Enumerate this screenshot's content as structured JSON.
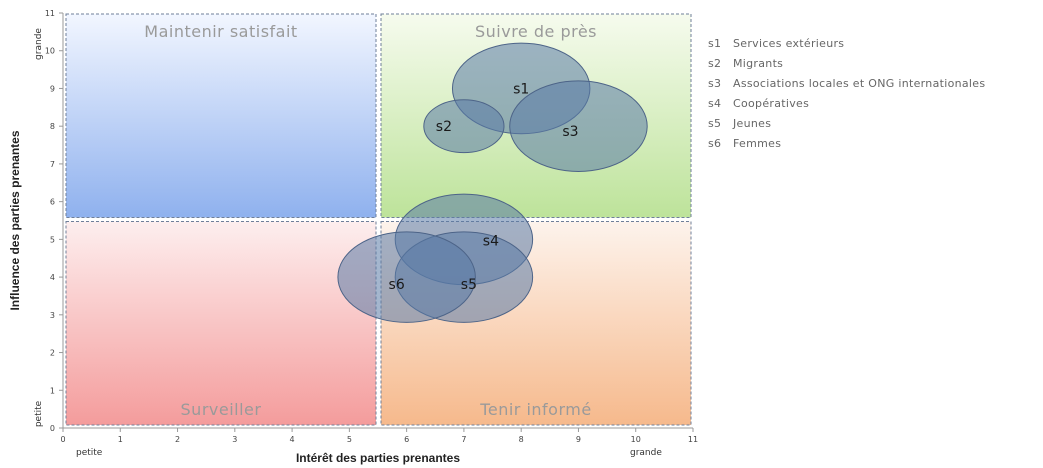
{
  "chart_data": {
    "type": "scatter",
    "subtype": "bubble",
    "xlabel": "Intérêt des parties prenantes",
    "ylabel": "Influence des parties prenantes",
    "xlim": [
      0,
      11
    ],
    "ylim": [
      0,
      11
    ],
    "xticks": [
      0,
      1,
      2,
      3,
      4,
      5,
      6,
      7,
      8,
      9,
      10,
      11
    ],
    "yticks": [
      0,
      1,
      2,
      3,
      4,
      5,
      6,
      7,
      8,
      9,
      10,
      11
    ],
    "x_end_labels": {
      "low": "petite",
      "high": "grande"
    },
    "y_end_labels": {
      "low": "petite",
      "high": "grande"
    },
    "grid": false,
    "quadrants": [
      {
        "label": "Maintenir satisfait",
        "x_range": [
          0,
          5.5
        ],
        "y_range": [
          5.5,
          11
        ],
        "color_top": "#f2f6ff",
        "color_bottom": "#8fb1ee"
      },
      {
        "label": "Suivre de près",
        "x_range": [
          5.5,
          11
        ],
        "y_range": [
          5.5,
          11
        ],
        "color_top": "#f6fbee",
        "color_bottom": "#bde39a"
      },
      {
        "label": "Surveiller",
        "x_range": [
          0,
          5.5
        ],
        "y_range": [
          0,
          5.5
        ],
        "color_top": "#fdeeee",
        "color_bottom": "#f49c9c"
      },
      {
        "label": "Tenir informé",
        "x_range": [
          5.5,
          11
        ],
        "y_range": [
          0,
          5.5
        ],
        "color_top": "#fdf3ec",
        "color_bottom": "#f6b98c"
      }
    ],
    "points": [
      {
        "id": "s1",
        "x": 8,
        "y": 9,
        "r": 1.2
      },
      {
        "id": "s2",
        "x": 7,
        "y": 8,
        "r": 0.7
      },
      {
        "id": "s3",
        "x": 9,
        "y": 8,
        "r": 1.2
      },
      {
        "id": "s4",
        "x": 7,
        "y": 5,
        "r": 1.2
      },
      {
        "id": "s5",
        "x": 7,
        "y": 4,
        "r": 1.2
      },
      {
        "id": "s6",
        "x": 6,
        "y": 4,
        "r": 1.2
      }
    ],
    "bubble_color": "#5a7aa6",
    "legend": {
      "position": "right",
      "entries": [
        {
          "id": "s1",
          "label": "Services extérieurs"
        },
        {
          "id": "s2",
          "label": "Migrants"
        },
        {
          "id": "s3",
          "label": "Associations locales et ONG internationales"
        },
        {
          "id": "s4",
          "label": "Coopératives"
        },
        {
          "id": "s5",
          "label": "Jeunes"
        },
        {
          "id": "s6",
          "label": "Femmes"
        }
      ]
    }
  }
}
